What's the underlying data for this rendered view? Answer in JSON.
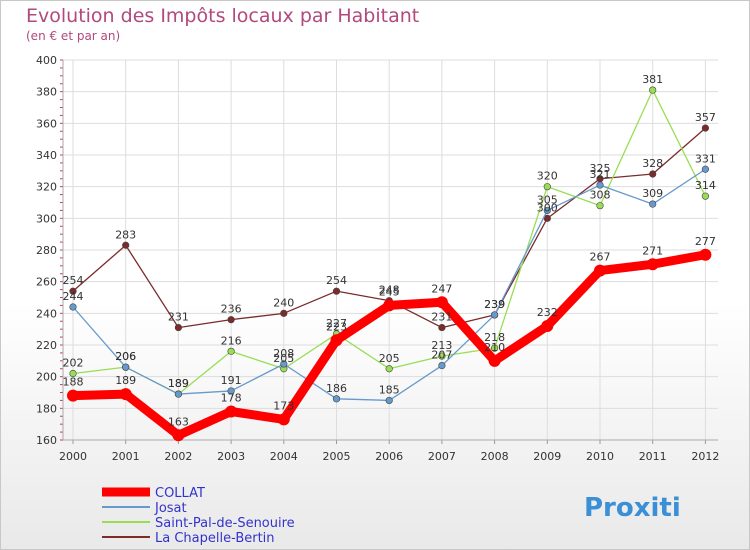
{
  "chart_data": {
    "type": "line",
    "title": "Evolution des Impôts locaux par Habitant",
    "subtitle": "(en € et par an)",
    "xlabel": "",
    "ylabel": "",
    "categories": [
      "2000",
      "2001",
      "2002",
      "2003",
      "2004",
      "2005",
      "2006",
      "2007",
      "2008",
      "2009",
      "2010",
      "2011",
      "2012"
    ],
    "ylim": [
      160,
      400
    ],
    "yticks": [
      160,
      180,
      200,
      220,
      240,
      260,
      280,
      300,
      320,
      340,
      360,
      380,
      400
    ],
    "grid": true,
    "series": [
      {
        "name": "COLLAT",
        "color": "#ff0000",
        "values": [
          188,
          189,
          163,
          178,
          173,
          223,
          245,
          247,
          210,
          232,
          267,
          271,
          277
        ]
      },
      {
        "name": "Josat",
        "color": "#6699cc",
        "values": [
          244,
          206,
          189,
          191,
          208,
          186,
          185,
          207,
          239,
          305,
          321,
          309,
          331
        ]
      },
      {
        "name": "Saint-Pal-de-Senouire",
        "color": "#99dd55",
        "values": [
          202,
          206,
          189,
          216,
          205,
          227,
          205,
          213,
          218,
          320,
          308,
          381,
          314
        ]
      },
      {
        "name": "La Chapelle-Bertin",
        "color": "#7a2b2b",
        "values": [
          254,
          283,
          231,
          236,
          240,
          254,
          248,
          231,
          239,
          300,
          325,
          328,
          357
        ]
      }
    ]
  },
  "legend": {
    "items": [
      {
        "label": "COLLAT",
        "color": "#ff0000"
      },
      {
        "label": "Josat",
        "color": "#6699cc"
      },
      {
        "label": "Saint-Pal-de-Senouire",
        "color": "#99dd55"
      },
      {
        "label": "La Chapelle-Bertin",
        "color": "#7a2b2b"
      }
    ]
  },
  "logo": {
    "text": "Proxiti"
  },
  "colors": {
    "title": "#b1497d",
    "legend_text": "#3333cc",
    "axis": "#aaaaaa",
    "grid": "#dddddd"
  }
}
